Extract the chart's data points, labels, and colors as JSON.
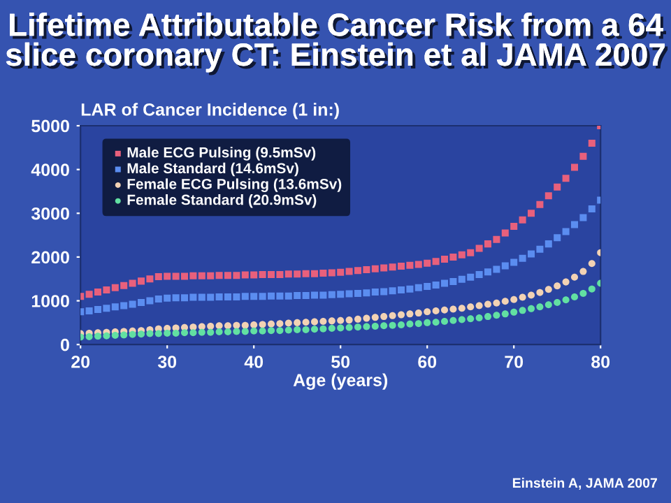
{
  "chart_data": {
    "type": "scatter",
    "title": "Lifetime Attributable Cancer Risk from a 64 slice coronary CT: Einstein et al JAMA 2007",
    "xlabel": "Age (years)",
    "ylabel": "LAR of Cancer Incidence (1 in:)",
    "annotations": [
      "Einstein A, JAMA 2007"
    ],
    "x": [
      20,
      21,
      22,
      23,
      24,
      25,
      26,
      27,
      28,
      29,
      30,
      31,
      32,
      33,
      34,
      35,
      36,
      37,
      38,
      39,
      40,
      41,
      42,
      43,
      44,
      45,
      46,
      47,
      48,
      49,
      50,
      51,
      52,
      53,
      54,
      55,
      56,
      57,
      58,
      59,
      60,
      61,
      62,
      63,
      64,
      65,
      66,
      67,
      68,
      69,
      70,
      71,
      72,
      73,
      74,
      75,
      76,
      77,
      78,
      79,
      80
    ],
    "xlim": [
      20,
      80
    ],
    "xticks": [
      20,
      30,
      40,
      50,
      60,
      70,
      80
    ],
    "ylim": [
      0,
      5000
    ],
    "yticks": [
      0,
      1000,
      2000,
      3000,
      4000,
      5000
    ],
    "legend": "top left",
    "series": [
      {
        "name": "Male ECG Pulsing (9.5mSv)",
        "color": "#e8607c",
        "marker": "square",
        "values": [
          1100,
          1150,
          1200,
          1250,
          1300,
          1350,
          1400,
          1450,
          1500,
          1550,
          1560,
          1560,
          1560,
          1570,
          1570,
          1570,
          1580,
          1580,
          1580,
          1590,
          1590,
          1600,
          1600,
          1600,
          1610,
          1610,
          1620,
          1620,
          1630,
          1640,
          1650,
          1670,
          1690,
          1710,
          1730,
          1750,
          1770,
          1790,
          1810,
          1830,
          1860,
          1900,
          1950,
          2000,
          2050,
          2100,
          2200,
          2300,
          2400,
          2550,
          2700,
          2850,
          3000,
          3200,
          3400,
          3600,
          3800,
          4050,
          4300,
          4600,
          5000
        ]
      },
      {
        "name": "Male Standard (14.6mSv)",
        "color": "#5b8df0",
        "marker": "square",
        "values": [
          750,
          770,
          800,
          830,
          860,
          890,
          920,
          960,
          1000,
          1040,
          1060,
          1070,
          1070,
          1080,
          1080,
          1080,
          1090,
          1090,
          1090,
          1100,
          1100,
          1100,
          1110,
          1110,
          1110,
          1120,
          1120,
          1130,
          1130,
          1140,
          1150,
          1160,
          1170,
          1180,
          1200,
          1210,
          1230,
          1250,
          1270,
          1300,
          1330,
          1360,
          1400,
          1440,
          1490,
          1540,
          1600,
          1660,
          1720,
          1800,
          1880,
          1970,
          2070,
          2180,
          2300,
          2440,
          2580,
          2740,
          2900,
          3100,
          3300
        ]
      },
      {
        "name": "Female ECG Pulsing (13.6mSv)",
        "color": "#f2d2b4",
        "marker": "circle",
        "values": [
          250,
          260,
          270,
          280,
          290,
          300,
          310,
          320,
          340,
          360,
          370,
          380,
          390,
          400,
          410,
          420,
          430,
          430,
          440,
          440,
          450,
          460,
          470,
          480,
          490,
          500,
          510,
          520,
          530,
          540,
          550,
          560,
          580,
          600,
          620,
          640,
          660,
          680,
          700,
          720,
          750,
          770,
          790,
          810,
          830,
          860,
          890,
          920,
          950,
          990,
          1030,
          1080,
          1130,
          1190,
          1260,
          1340,
          1430,
          1540,
          1670,
          1850,
          2100
        ]
      },
      {
        "name": "Female Standard (20.9mSv)",
        "color": "#62e0a2",
        "marker": "circle",
        "values": [
          170,
          180,
          190,
          200,
          210,
          220,
          230,
          240,
          250,
          250,
          260,
          260,
          270,
          270,
          280,
          280,
          290,
          290,
          300,
          300,
          310,
          310,
          320,
          320,
          330,
          340,
          340,
          350,
          360,
          370,
          380,
          390,
          400,
          410,
          420,
          430,
          440,
          450,
          470,
          480,
          500,
          510,
          530,
          550,
          570,
          590,
          610,
          640,
          670,
          700,
          740,
          780,
          820,
          860,
          910,
          960,
          1020,
          1090,
          1170,
          1270,
          1400
        ]
      }
    ]
  }
}
